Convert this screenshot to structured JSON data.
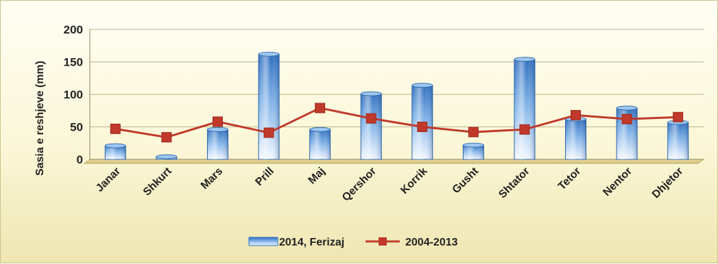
{
  "chart_data": {
    "type": "bar",
    "categories": [
      "Janar",
      "Shkurt",
      "Mars",
      "Prill",
      "Maj",
      "Qershor",
      "Korrik",
      "Gusht",
      "Shtator",
      "Tetor",
      "Nentor",
      "Dhjetor"
    ],
    "series": [
      {
        "name": "2014, Ferizaj",
        "type": "bar",
        "color": "#4a90d8",
        "values": [
          21,
          4,
          46,
          162,
          46,
          101,
          114,
          22,
          154,
          62,
          79,
          57
        ]
      },
      {
        "name": "2004-2013",
        "type": "line",
        "color": "#c0392b",
        "values": [
          47,
          34,
          58,
          41,
          79,
          63,
          50,
          42,
          46,
          68,
          62,
          65
        ]
      }
    ],
    "ylabel": "Sasia e reshjeve  (mm)",
    "ylim": [
      0,
      200
    ],
    "yticks": [
      "0",
      "50",
      "100",
      "150",
      "200"
    ],
    "grid": true,
    "legend": "bottom-center"
  }
}
